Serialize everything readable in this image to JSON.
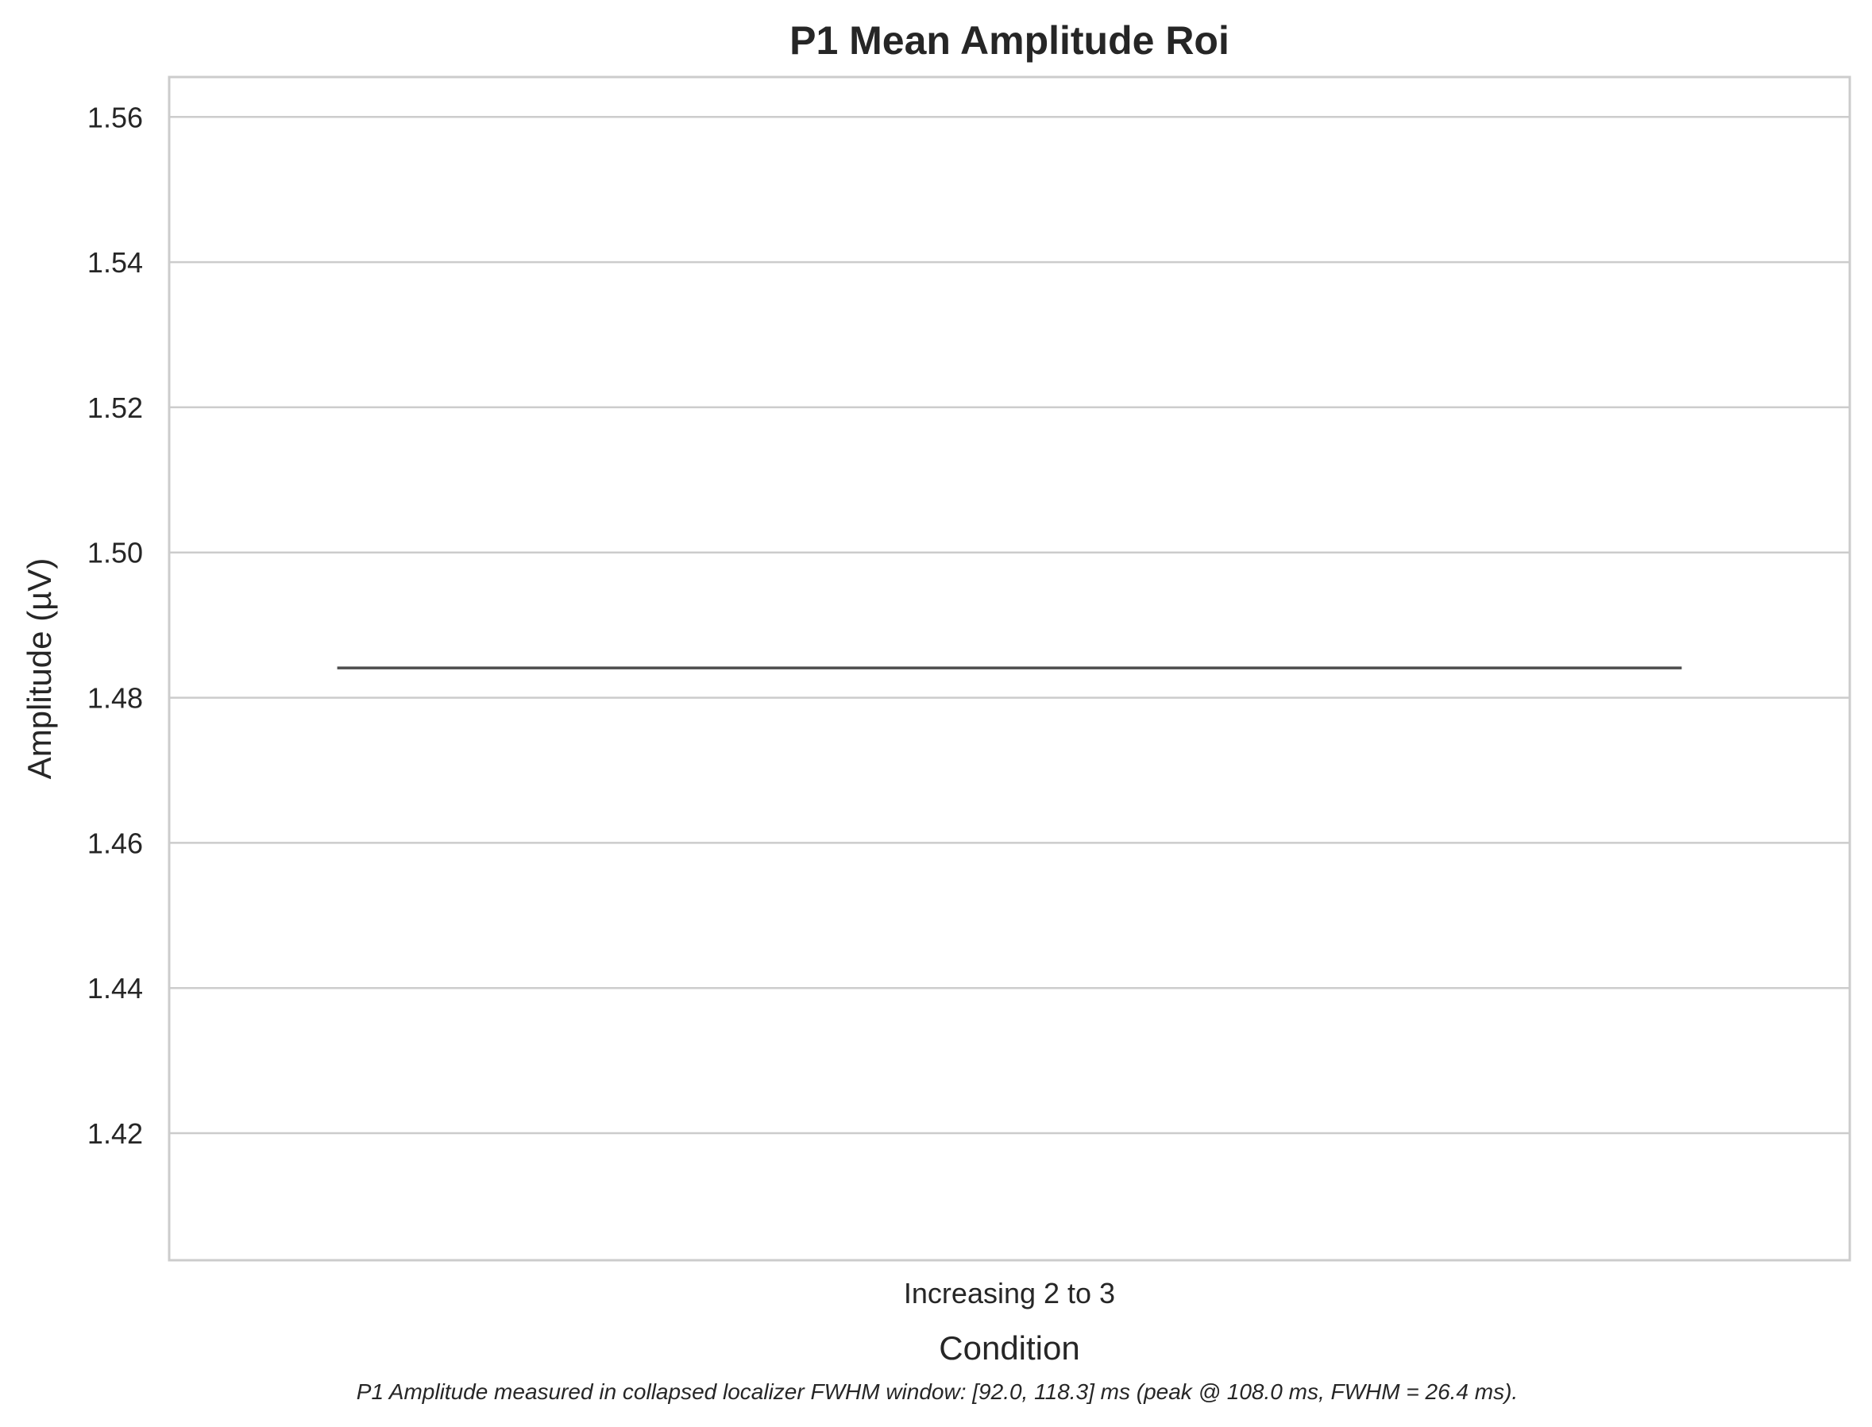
{
  "chart_data": {
    "type": "line",
    "title": "P1 Mean Amplitude Roi",
    "xlabel": "Condition",
    "ylabel": "Amplitude (µV)",
    "categories": [
      "Increasing 2 to 3"
    ],
    "series": [
      {
        "values": [
          1.4841
        ]
      }
    ],
    "ylim": [
      1.4025,
      1.5655
    ],
    "yticks": [
      "1.42",
      "1.44",
      "1.46",
      "1.48",
      "1.50",
      "1.52",
      "1.54",
      "1.56"
    ],
    "grid": "horizontal",
    "caption": "P1 Amplitude measured in collapsed localizer FWHM window: [92.0, 118.3] ms (peak @ 108.0 ms, FWHM = 26.4 ms).",
    "colors": {
      "line": "#4d4d4d",
      "grid": "#cccccc",
      "text": "#262626"
    }
  }
}
